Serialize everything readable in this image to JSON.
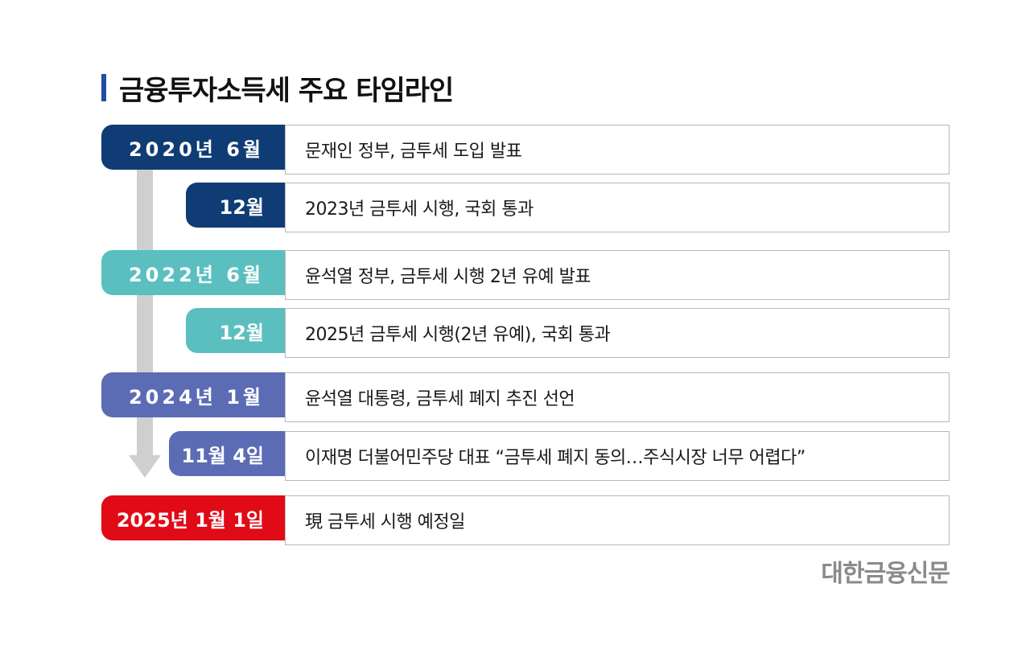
{
  "title": "금융투자소득세 주요 타임라인",
  "colors": {
    "title_bar": "#1f4ea3",
    "navy": "#0f3c74",
    "teal": "#5bbfbf",
    "periwinkle": "#5b6cb5",
    "red": "#e00b16",
    "timeline_gray": "#cfcfcf"
  },
  "events": [
    {
      "label": "2020년 6월",
      "text": "문재인 정부, 금투세 도입 발표"
    },
    {
      "label": "12월",
      "text": "2023년 금투세 시행, 국회 통과"
    },
    {
      "label": "2022년 6월",
      "text": "윤석열 정부, 금투세 시행 2년 유예 발표"
    },
    {
      "label": "12월",
      "text": "2025년 금투세 시행(2년 유예), 국회 통과"
    },
    {
      "label": "2024년 1월",
      "text": "윤석열 대통령, 금투세 폐지 추진 선언"
    },
    {
      "label": "11월 4일",
      "text": "이재명 더불어민주당 대표 “금투세 폐지 동의…주식시장 너무 어렵다”"
    },
    {
      "label": "2025년 1월 1일",
      "text": "現 금투세 시행 예정일"
    }
  ],
  "brand": "대한금융신문"
}
